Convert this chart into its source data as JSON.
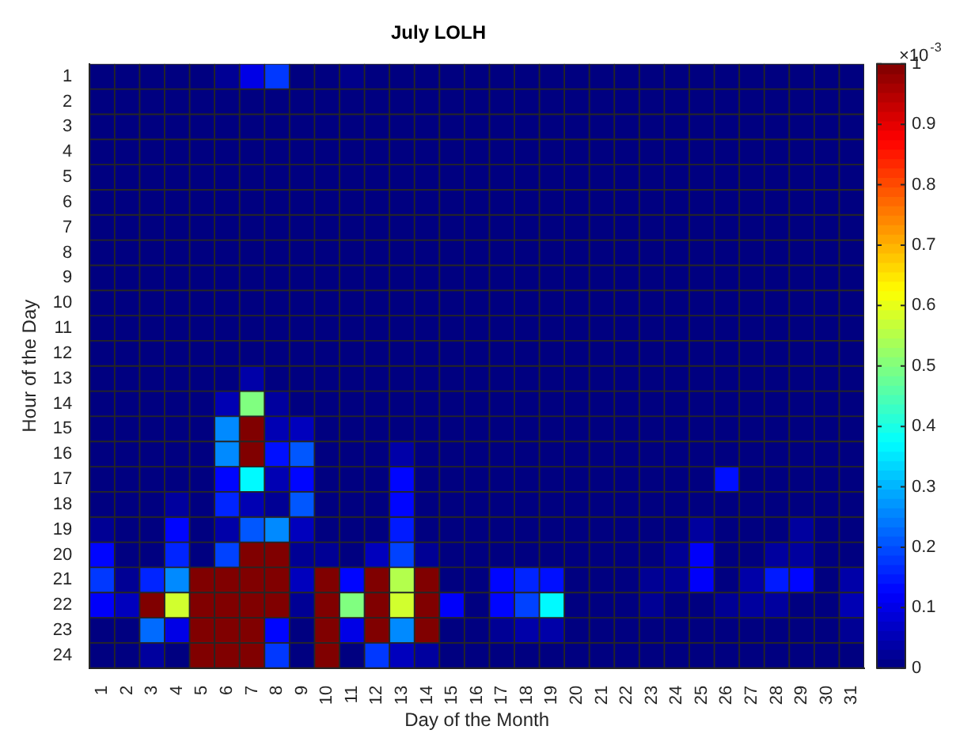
{
  "chart_data": {
    "type": "heatmap",
    "title": "July LOLH",
    "xlabel": "Day of the Month",
    "ylabel": "Hour of the Day",
    "clabel": "×10$^{-3}$",
    "categories": [
      "1",
      "2",
      "3",
      "4",
      "5",
      "6",
      "7",
      "8",
      "9",
      "10",
      "11",
      "12",
      "13",
      "14",
      "15",
      "16",
      "17",
      "18",
      "19",
      "20",
      "21",
      "22",
      "23",
      "24",
      "25",
      "26",
      "27",
      "28",
      "29",
      "30",
      "31"
    ],
    "y_categories": [
      "1",
      "2",
      "3",
      "4",
      "5",
      "6",
      "7",
      "8",
      "9",
      "10",
      "11",
      "12",
      "13",
      "14",
      "15",
      "16",
      "17",
      "18",
      "19",
      "20",
      "21",
      "22",
      "23",
      "24"
    ],
    "clim": [
      0,
      1
    ],
    "cticks": [
      0,
      0.1,
      0.2,
      0.3,
      0.4,
      0.5,
      0.6,
      0.7,
      0.8,
      0.9,
      1
    ],
    "cells": [
      [
        0,
        0,
        0,
        0,
        0,
        0.02,
        0.1,
        0.18,
        0,
        0,
        0.01,
        0,
        0,
        0,
        0,
        0,
        0,
        0,
        0,
        0,
        0,
        0,
        0,
        0,
        0,
        0,
        0,
        0,
        0,
        0,
        0
      ],
      [
        0,
        0,
        0,
        0,
        0,
        0,
        0,
        0,
        0,
        0,
        0,
        0,
        0,
        0,
        0,
        0,
        0,
        0,
        0,
        0,
        0,
        0,
        0,
        0,
        0,
        0,
        0,
        0,
        0,
        0,
        0
      ],
      [
        0,
        0,
        0,
        0,
        0,
        0,
        0,
        0,
        0,
        0,
        0,
        0,
        0,
        0,
        0,
        0,
        0,
        0,
        0,
        0,
        0,
        0,
        0,
        0,
        0,
        0,
        0,
        0,
        0,
        0,
        0
      ],
      [
        0,
        0,
        0,
        0,
        0,
        0,
        0,
        0,
        0,
        0,
        0,
        0,
        0,
        0,
        0,
        0,
        0,
        0,
        0,
        0,
        0,
        0,
        0,
        0,
        0,
        0,
        0,
        0,
        0,
        0,
        0
      ],
      [
        0,
        0,
        0,
        0,
        0,
        0,
        0,
        0,
        0,
        0,
        0,
        0,
        0,
        0,
        0,
        0,
        0,
        0,
        0,
        0,
        0,
        0,
        0,
        0,
        0,
        0,
        0,
        0,
        0,
        0,
        0
      ],
      [
        0,
        0,
        0,
        0,
        0,
        0,
        0,
        0,
        0,
        0,
        0,
        0,
        0,
        0,
        0,
        0,
        0,
        0,
        0,
        0,
        0,
        0,
        0,
        0,
        0,
        0,
        0,
        0,
        0,
        0,
        0
      ],
      [
        0,
        0,
        0,
        0,
        0,
        0,
        0,
        0,
        0,
        0,
        0,
        0,
        0,
        0,
        0,
        0,
        0,
        0,
        0,
        0,
        0,
        0,
        0,
        0,
        0,
        0,
        0,
        0,
        0,
        0,
        0
      ],
      [
        0,
        0,
        0,
        0,
        0,
        0,
        0,
        0,
        0,
        0,
        0,
        0,
        0,
        0,
        0,
        0,
        0,
        0,
        0,
        0,
        0,
        0,
        0,
        0,
        0,
        0,
        0,
        0,
        0,
        0,
        0
      ],
      [
        0,
        0,
        0,
        0,
        0,
        0,
        0,
        0,
        0,
        0,
        0,
        0,
        0,
        0,
        0,
        0,
        0,
        0,
        0,
        0,
        0,
        0,
        0,
        0,
        0,
        0,
        0,
        0,
        0,
        0,
        0
      ],
      [
        0,
        0,
        0,
        0,
        0,
        0,
        0,
        0,
        0,
        0,
        0,
        0,
        0,
        0,
        0,
        0,
        0,
        0,
        0,
        0,
        0,
        0,
        0,
        0,
        0,
        0,
        0,
        0,
        0,
        0,
        0
      ],
      [
        0,
        0,
        0,
        0,
        0,
        0,
        0,
        0,
        0,
        0,
        0,
        0,
        0,
        0,
        0,
        0,
        0,
        0,
        0,
        0,
        0,
        0,
        0,
        0,
        0,
        0,
        0,
        0,
        0,
        0,
        0
      ],
      [
        0,
        0,
        0,
        0,
        0,
        0,
        0,
        0,
        0,
        0,
        0,
        0,
        0,
        0,
        0,
        0,
        0,
        0,
        0,
        0,
        0,
        0,
        0,
        0,
        0,
        0,
        0,
        0,
        0,
        0,
        0
      ],
      [
        0,
        0,
        0,
        0,
        0,
        0,
        0.04,
        0,
        0,
        0,
        0,
        0,
        0,
        0,
        0,
        0,
        0,
        0,
        0,
        0,
        0,
        0,
        0,
        0,
        0,
        0,
        0,
        0,
        0,
        0,
        0
      ],
      [
        0,
        0,
        0,
        0,
        0,
        0.05,
        0.5,
        0.03,
        0,
        0,
        0,
        0,
        0,
        0,
        0,
        0,
        0,
        0,
        0,
        0,
        0,
        0,
        0,
        0,
        0,
        0,
        0,
        0,
        0,
        0,
        0
      ],
      [
        0,
        0,
        0,
        0,
        0,
        0.26,
        1,
        0.05,
        0.06,
        0,
        0,
        0,
        0,
        0,
        0,
        0,
        0,
        0,
        0,
        0,
        0,
        0,
        0,
        0,
        0,
        0,
        0,
        0,
        0,
        0,
        0
      ],
      [
        0,
        0,
        0,
        0,
        0,
        0.26,
        1,
        0.14,
        0.21,
        0,
        0,
        0,
        0.04,
        0,
        0,
        0,
        0,
        0,
        0,
        0,
        0,
        0,
        0,
        0,
        0,
        0,
        0,
        0,
        0,
        0,
        0
      ],
      [
        0,
        0,
        0,
        0,
        0,
        0.13,
        0.37,
        0.05,
        0.13,
        0,
        0,
        0,
        0.13,
        0,
        0,
        0,
        0,
        0,
        0,
        0,
        0,
        0,
        0,
        0,
        0,
        0.14,
        0,
        0,
        0,
        0,
        0
      ],
      [
        0,
        0,
        0,
        0.03,
        0,
        0.16,
        0.05,
        0.02,
        0.21,
        0,
        0,
        0,
        0.13,
        0,
        0,
        0,
        0,
        0,
        0,
        0,
        0,
        0,
        0,
        0,
        0,
        0,
        0,
        0,
        0,
        0,
        0
      ],
      [
        0.02,
        0,
        0,
        0.13,
        0,
        0.04,
        0.21,
        0.26,
        0.06,
        0,
        0,
        0,
        0.15,
        0,
        0,
        0,
        0,
        0,
        0,
        0,
        0,
        0,
        0,
        0,
        0.03,
        0,
        0,
        0,
        0.03,
        0,
        0
      ],
      [
        0.13,
        0,
        0,
        0.16,
        0,
        0.19,
        1,
        1,
        0.02,
        0.02,
        0,
        0.06,
        0.19,
        0.02,
        0,
        0,
        0,
        0,
        0,
        0,
        0,
        0,
        0,
        0.02,
        0.12,
        0,
        0,
        0.03,
        0.03,
        0,
        0
      ],
      [
        0.18,
        0.02,
        0.16,
        0.26,
        1,
        1,
        1,
        1,
        0.06,
        1,
        0.13,
        1,
        0.55,
        1,
        0,
        0,
        0.13,
        0.16,
        0.14,
        0,
        0,
        0,
        0.02,
        0.02,
        0.12,
        0,
        0.04,
        0.15,
        0.13,
        0,
        0.04
      ],
      [
        0.12,
        0.06,
        1,
        0.58,
        1,
        1,
        1,
        1,
        0.02,
        1,
        0.5,
        1,
        0.58,
        1,
        0.12,
        0,
        0.13,
        0.19,
        0.37,
        0,
        0,
        0,
        0.02,
        0,
        0,
        0.02,
        0.03,
        0.03,
        0,
        0,
        0.05
      ],
      [
        0,
        0,
        0.23,
        0.1,
        1,
        1,
        1,
        0.13,
        0,
        1,
        0.1,
        1,
        0.26,
        1,
        0,
        0,
        0.02,
        0.04,
        0.04,
        0,
        0,
        0,
        0,
        0,
        0,
        0,
        0,
        0,
        0,
        0,
        0.02
      ],
      [
        0,
        0,
        0.03,
        0,
        1,
        1,
        1,
        0.18,
        0,
        1,
        0,
        0.18,
        0.06,
        0.03,
        0,
        0,
        0,
        0,
        0,
        0,
        0,
        0,
        0,
        0,
        0,
        0,
        0,
        0,
        0,
        0,
        0
      ]
    ]
  }
}
